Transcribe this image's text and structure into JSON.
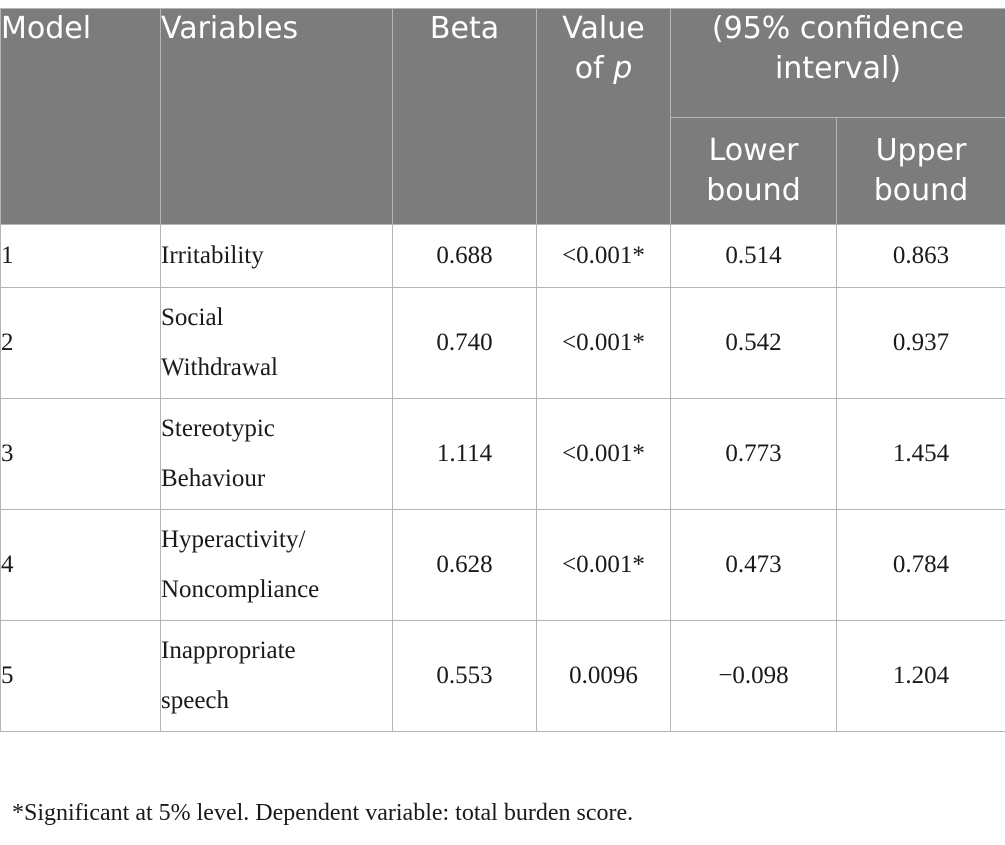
{
  "table": {
    "headers": {
      "model": "Model",
      "variables": "Variables",
      "beta": "Beta",
      "pvalue_prefix": "Value",
      "pvalue_of": "of",
      "pvalue_var": "p",
      "ci_line1": "(95% confidence",
      "ci_line2": "interval)",
      "lower_line1": "Lower",
      "lower_line2": "bound",
      "upper_line1": "Upper",
      "upper_line2": "bound"
    },
    "rows": [
      {
        "model": "1",
        "variable": "Irritability",
        "beta": "0.688",
        "p": "<0.001*",
        "lower": "0.514",
        "upper": "0.863"
      },
      {
        "model": "2",
        "variable": "Social Withdrawal",
        "beta": "0.740",
        "p": "<0.001*",
        "lower": "0.542",
        "upper": "0.937"
      },
      {
        "model": "3",
        "variable": "Stereotypic Behaviour",
        "beta": "1.114",
        "p": "<0.001*",
        "lower": "0.773",
        "upper": "1.454"
      },
      {
        "model": "4",
        "variable": "Hyperactivity/ Noncompliance",
        "beta": "0.628",
        "p": "<0.001*",
        "lower": "0.473",
        "upper": "0.784"
      },
      {
        "model": "5",
        "variable": "Inappropriate speech",
        "beta": "0.553",
        "p": "0.0096",
        "lower": "−0.098",
        "upper": "1.204"
      }
    ]
  },
  "footnote": "*Significant at 5% level. Dependent variable: total burden score."
}
